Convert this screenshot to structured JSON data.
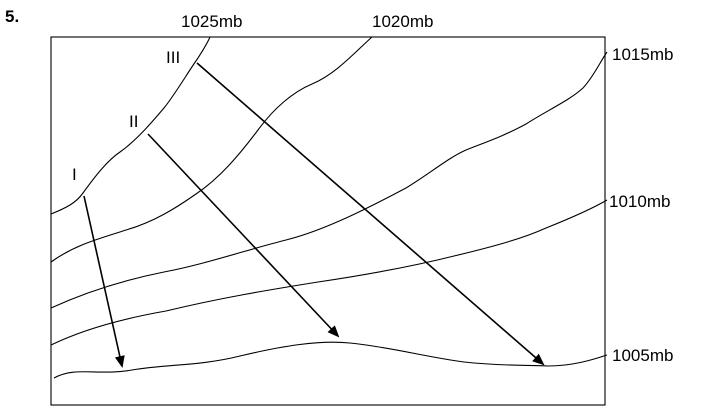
{
  "question_number": "5.",
  "isobar_labels": {
    "mb1025": "1025mb",
    "mb1020": "1020mb",
    "mb1015": "1015mb",
    "mb1010": "1010mb",
    "mb1005": "1005mb"
  },
  "arrow_labels": {
    "one": "I",
    "two": "II",
    "three": "III"
  }
}
